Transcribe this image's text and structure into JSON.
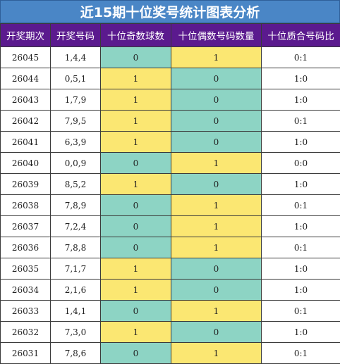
{
  "title": "近15期十位奖号统计图表分析",
  "headers": [
    "开奖期次",
    "开奖号码",
    "十位奇数球数",
    "十位偶数号码数量",
    "十位质合号码比"
  ],
  "colors": {
    "title_bg": "#4a86c6",
    "header_bg": "#5b1a8e",
    "green": "#8dd4c4",
    "yellow": "#fbe772"
  },
  "rows": [
    {
      "issue": "26045",
      "numbers": "1,4,4",
      "odd": "0",
      "even": "1",
      "ratio": "0:1"
    },
    {
      "issue": "26044",
      "numbers": "0,5,1",
      "odd": "1",
      "even": "0",
      "ratio": "1:0"
    },
    {
      "issue": "26043",
      "numbers": "1,7,9",
      "odd": "1",
      "even": "0",
      "ratio": "1:0"
    },
    {
      "issue": "26042",
      "numbers": "7,9,5",
      "odd": "1",
      "even": "0",
      "ratio": "0:1"
    },
    {
      "issue": "26041",
      "numbers": "6,3,9",
      "odd": "1",
      "even": "0",
      "ratio": "1:0"
    },
    {
      "issue": "26040",
      "numbers": "0,0,9",
      "odd": "0",
      "even": "1",
      "ratio": "0:0"
    },
    {
      "issue": "26039",
      "numbers": "8,5,2",
      "odd": "1",
      "even": "0",
      "ratio": "1:0"
    },
    {
      "issue": "26038",
      "numbers": "7,8,9",
      "odd": "0",
      "even": "1",
      "ratio": "0:1"
    },
    {
      "issue": "26037",
      "numbers": "7,2,4",
      "odd": "0",
      "even": "1",
      "ratio": "1:0"
    },
    {
      "issue": "26036",
      "numbers": "7,8,8",
      "odd": "0",
      "even": "1",
      "ratio": "0:1"
    },
    {
      "issue": "26035",
      "numbers": "7,1,7",
      "odd": "1",
      "even": "0",
      "ratio": "1:0"
    },
    {
      "issue": "26034",
      "numbers": "2,1,6",
      "odd": "1",
      "even": "0",
      "ratio": "1:0"
    },
    {
      "issue": "26033",
      "numbers": "1,4,1",
      "odd": "0",
      "even": "1",
      "ratio": "0:1"
    },
    {
      "issue": "26032",
      "numbers": "7,3,0",
      "odd": "1",
      "even": "0",
      "ratio": "1:0"
    },
    {
      "issue": "26031",
      "numbers": "7,8,6",
      "odd": "0",
      "even": "1",
      "ratio": "0:1"
    }
  ]
}
